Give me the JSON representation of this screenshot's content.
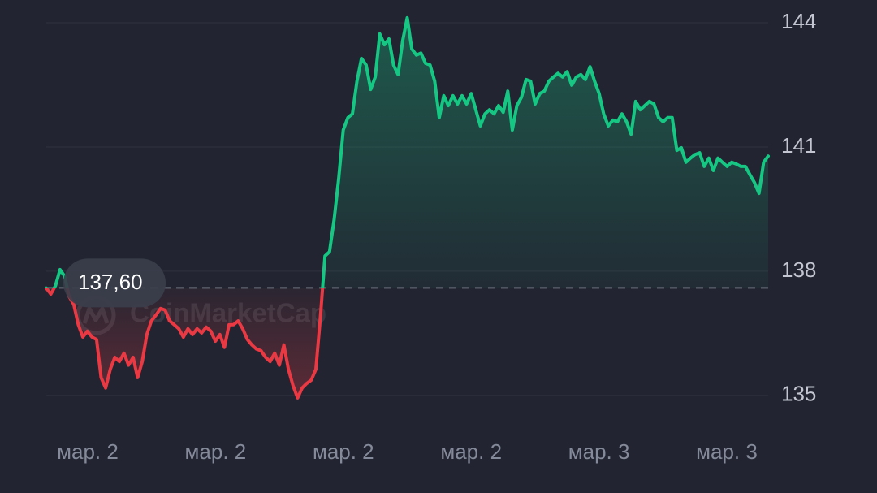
{
  "chart_data": {
    "type": "line",
    "color_up": "#16c784",
    "color_down": "#ea3943",
    "grid": true,
    "ylim": [
      134.35,
      144.55
    ],
    "yticks": [
      135,
      138,
      141,
      144
    ],
    "baseline": {
      "value": 137.6,
      "label": "137,60"
    },
    "watermark": "CoinMarketCap",
    "xtick_labels": [
      "мар. 2",
      "мар. 2",
      "мар. 2",
      "мар. 2",
      "мар. 3",
      "мар. 3"
    ],
    "values": [
      137.59,
      137.45,
      137.65,
      138.04,
      137.88,
      137.39,
      137.2,
      136.71,
      136.41,
      136.55,
      136.41,
      136.35,
      135.43,
      135.18,
      135.63,
      135.92,
      135.82,
      136.02,
      135.73,
      135.92,
      135.43,
      135.82,
      136.47,
      136.8,
      136.94,
      137.1,
      137.06,
      136.8,
      136.71,
      136.61,
      136.41,
      136.61,
      136.47,
      136.61,
      136.51,
      136.65,
      136.55,
      136.31,
      136.47,
      136.16,
      136.71,
      136.71,
      136.8,
      136.61,
      136.35,
      136.22,
      136.12,
      136.08,
      135.92,
      135.82,
      136.02,
      135.73,
      136.22,
      135.63,
      135.24,
      134.94,
      135.18,
      135.29,
      135.37,
      135.63,
      136.9,
      138.37,
      138.47,
      139.25,
      140.24,
      141.41,
      141.71,
      141.8,
      142.59,
      143.14,
      142.98,
      142.39,
      142.69,
      143.73,
      143.47,
      143.61,
      142.98,
      142.75,
      143.57,
      144.12,
      143.37,
      143.22,
      143.27,
      143.02,
      142.98,
      142.59,
      141.71,
      142.24,
      142.0,
      142.24,
      142.04,
      142.24,
      142.04,
      142.29,
      141.9,
      141.51,
      141.8,
      141.9,
      141.8,
      142.0,
      141.84,
      142.35,
      141.41,
      142.0,
      142.2,
      142.63,
      142.59,
      142.04,
      142.29,
      142.35,
      142.59,
      142.69,
      142.78,
      142.69,
      142.82,
      142.49,
      142.69,
      142.75,
      142.63,
      142.94,
      142.59,
      142.29,
      141.8,
      141.51,
      141.65,
      141.61,
      141.8,
      141.61,
      141.31,
      142.1,
      141.9,
      142.0,
      142.1,
      142.04,
      141.71,
      141.61,
      141.71,
      141.71,
      140.92,
      140.98,
      140.63,
      140.73,
      140.82,
      140.86,
      140.53,
      140.73,
      140.43,
      140.73,
      140.63,
      140.53,
      140.63,
      140.59,
      140.53,
      140.53,
      140.33,
      140.14,
      139.88,
      140.63,
      140.78
    ]
  }
}
